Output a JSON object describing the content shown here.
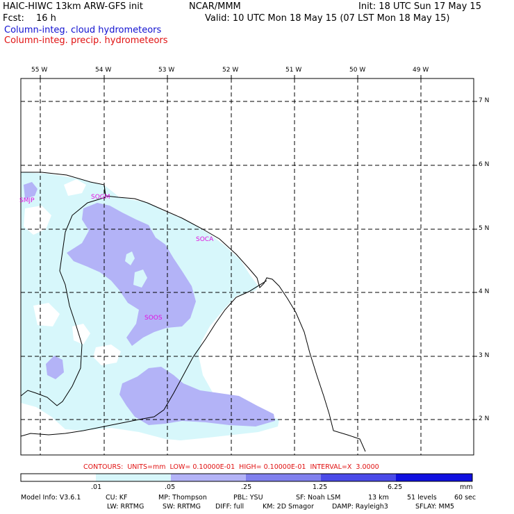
{
  "header": {
    "model_line": "HAIC-HIWC 13km ARW-GFS init",
    "org": "NCAR/MMM",
    "init": "Init: 18 UTC Sun 17 May 15",
    "fcst_label": "Fcst:",
    "fcst_value": "16 h",
    "valid": "Valid: 10 UTC Mon 18 May 15 (07 LST Mon 18 May 15)",
    "field_cloud": "Column-integ. cloud hydrometeors",
    "field_precip": "Column-integ. precip. hydrometeors"
  },
  "map": {
    "lon_labels": [
      "55 W",
      "54 W",
      "53 W",
      "52 W",
      "51 W",
      "50 W",
      "49 W"
    ],
    "lat_labels": [
      "7 N",
      "6 N",
      "5 N",
      "4 N",
      "3 N",
      "2 N"
    ],
    "stations": [
      "SMJP",
      "SOGM",
      "SOCA",
      "SOOS"
    ]
  },
  "colorbar": {
    "contours_text": "CONTOURS:  UNITS=mm  LOW= 0.10000E-01  HIGH= 0.10000E-01  INTERVAL=X  3.0000",
    "tick_labels": [
      ".01",
      ".05",
      ".25",
      "1.25",
      "6.25"
    ],
    "units": "mm",
    "colors": [
      "#ffffff",
      "#d7f7fb",
      "#b3b3f7",
      "#8080ee",
      "#4a4ae8",
      "#1010e0"
    ]
  },
  "model_info": {
    "line1": [
      "Model Info: V3.6.1",
      "CU: KF",
      "MP: Thompson",
      "PBL: YSU",
      "SF: Noah LSM",
      "13 km",
      "51 levels",
      "60 sec"
    ],
    "line2": [
      "LW: RRTMG",
      "SW: RRTMG",
      "DIFF: full",
      "KM: 2D Smagor",
      "DAMP: Rayleigh3",
      "SFLAY: MM5"
    ]
  }
}
